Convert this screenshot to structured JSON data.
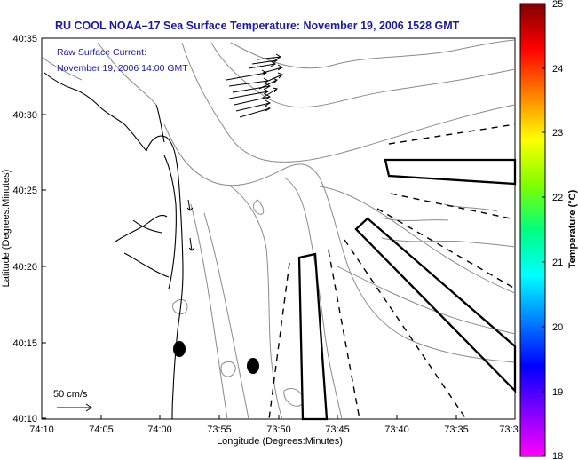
{
  "title": "RU COOL  NOAA–17  Sea Surface Temperature:  November 19, 2006 1528 GMT",
  "current_note": {
    "line1": "Raw Surface Current:",
    "line2": "November 19, 2006 14:00 GMT"
  },
  "axes": {
    "ylabel": "Latitude (Degrees:Minutes)",
    "xlabel": "Longitude (Degrees:Minutes)",
    "yticks": [
      "40:35",
      "40:30",
      "40:25",
      "40:20",
      "40:15",
      "40:10"
    ],
    "xticks": [
      "74:10",
      "74:05",
      "74:00",
      "73:55",
      "73:50",
      "73:45",
      "73:40",
      "73:35",
      "73:3"
    ]
  },
  "scale": {
    "label": "50 cm/s"
  },
  "colorbar": {
    "title": "Temperature (°C)",
    "labels": [
      "25",
      "24",
      "23",
      "22",
      "21",
      "20",
      "19",
      "18"
    ],
    "colors": [
      "#ff00ff",
      "#8000ff",
      "#0000ff",
      "#0080ff",
      "#00ffff",
      "#00ff80",
      "#80ff00",
      "#ffff00",
      "#ff8000",
      "#ff0000",
      "#800000"
    ]
  }
}
